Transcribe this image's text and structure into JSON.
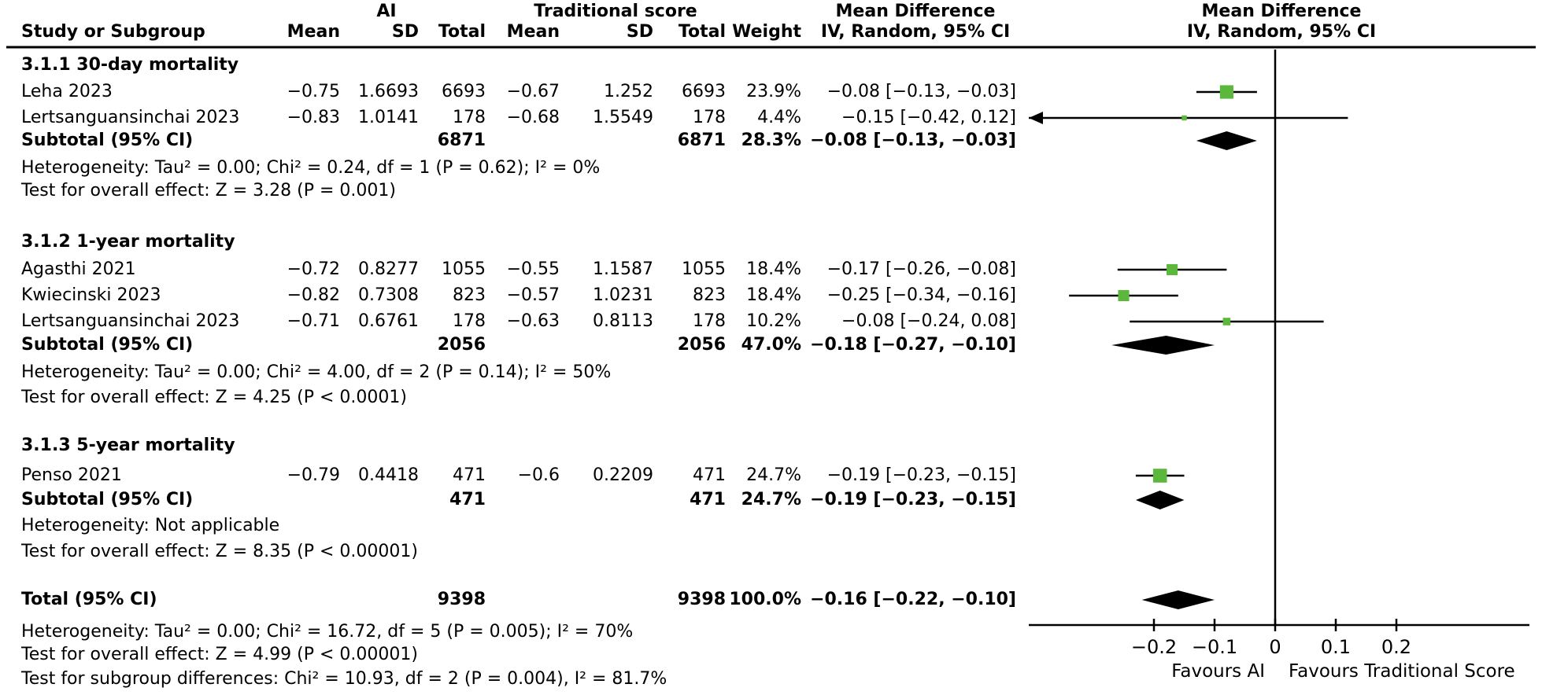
{
  "figure_header": {
    "study_col": "Study or Subgroup",
    "ai_group": "AI",
    "traditional_group": "Traditional score",
    "mean": "Mean",
    "sd": "SD",
    "total": "Total",
    "weight": "Weight",
    "md_title": "Mean Difference",
    "md_subtitle": "IV, Random, 95% CI"
  },
  "colors": {
    "marker_green": "#5cb83c",
    "ink": "#000000",
    "background": "#ffffff"
  },
  "chart_data": {
    "type": "forest",
    "effect_measure": "Mean Difference",
    "model": "IV, Random, 95% CI",
    "subtotal_label": "Subtotal (95% CI)",
    "axis": {
      "ticks": [
        -0.2,
        -0.1,
        0,
        0.1,
        0.2
      ],
      "clip_range": [
        -0.406,
        0.42
      ],
      "favours_left": "Favours AI",
      "favours_right": "Favours Traditional Score"
    },
    "subgroups": [
      {
        "name": "3.1.1 30-day mortality",
        "studies": [
          {
            "name": "Leha 2023",
            "ai_mean": -0.75,
            "ai_sd": 1.6693,
            "ai_total": 6693,
            "trad_mean": -0.67,
            "trad_sd": 1.252,
            "trad_total": 6693,
            "weight_pct": 23.9,
            "md": -0.08,
            "ci_low": -0.13,
            "ci_high": -0.03
          },
          {
            "name": "Lertsanguansinchai 2023",
            "ai_mean": -0.83,
            "ai_sd": 1.0141,
            "ai_total": 178,
            "trad_mean": -0.68,
            "trad_sd": 1.5549,
            "trad_total": 178,
            "weight_pct": 4.4,
            "md": -0.15,
            "ci_low": -0.42,
            "ci_high": 0.12
          }
        ],
        "subtotal": {
          "ai_total": 6871,
          "trad_total": 6871,
          "weight_pct": 28.3,
          "md": -0.08,
          "ci_low": -0.13,
          "ci_high": -0.03
        },
        "heterogeneity": "Heterogeneity: Tau² = 0.00; Chi² = 0.24, df = 1 (P = 0.62); I² = 0%",
        "overall_effect": "Test for overall effect: Z = 3.28 (P = 0.001)"
      },
      {
        "name": "3.1.2 1-year mortality",
        "studies": [
          {
            "name": "Agasthi 2021",
            "ai_mean": -0.72,
            "ai_sd": 0.8277,
            "ai_total": 1055,
            "trad_mean": -0.55,
            "trad_sd": 1.1587,
            "trad_total": 1055,
            "weight_pct": 18.4,
            "md": -0.17,
            "ci_low": -0.26,
            "ci_high": -0.08
          },
          {
            "name": "Kwiecinski 2023",
            "ai_mean": -0.82,
            "ai_sd": 0.7308,
            "ai_total": 823,
            "trad_mean": -0.57,
            "trad_sd": 1.0231,
            "trad_total": 823,
            "weight_pct": 18.4,
            "md": -0.25,
            "ci_low": -0.34,
            "ci_high": -0.16
          },
          {
            "name": "Lertsanguansinchai 2023",
            "ai_mean": -0.71,
            "ai_sd": 0.6761,
            "ai_total": 178,
            "trad_mean": -0.63,
            "trad_sd": 0.8113,
            "trad_total": 178,
            "weight_pct": 10.2,
            "md": -0.08,
            "ci_low": -0.24,
            "ci_high": 0.08
          }
        ],
        "subtotal": {
          "ai_total": 2056,
          "trad_total": 2056,
          "weight_pct": 47.0,
          "md": -0.18,
          "ci_low": -0.27,
          "ci_high": -0.1
        },
        "heterogeneity": "Heterogeneity: Tau² = 0.00; Chi² = 4.00, df = 2 (P = 0.14); I² = 50%",
        "overall_effect": "Test for overall effect: Z = 4.25 (P < 0.0001)"
      },
      {
        "name": "3.1.3 5-year mortality",
        "studies": [
          {
            "name": "Penso 2021",
            "ai_mean": -0.79,
            "ai_sd": 0.4418,
            "ai_total": 471,
            "trad_mean": -0.6,
            "trad_sd": 0.2209,
            "trad_total": 471,
            "weight_pct": 24.7,
            "md": -0.19,
            "ci_low": -0.23,
            "ci_high": -0.15
          }
        ],
        "subtotal": {
          "ai_total": 471,
          "trad_total": 471,
          "weight_pct": 24.7,
          "md": -0.19,
          "ci_low": -0.23,
          "ci_high": -0.15
        },
        "heterogeneity": "Heterogeneity: Not applicable",
        "overall_effect": "Test for overall effect: Z = 8.35 (P < 0.00001)"
      }
    ],
    "total": {
      "label": "Total (95% CI)",
      "ai_total": 9398,
      "trad_total": 9398,
      "weight_pct": 100.0,
      "md": -0.16,
      "ci_low": -0.22,
      "ci_high": -0.1,
      "heterogeneity": "Heterogeneity: Tau² = 0.00; Chi² = 16.72, df = 5 (P = 0.005); I² = 70%",
      "overall_effect": "Test for overall effect: Z = 4.99 (P < 0.00001)",
      "subgroup_differences": "Test for subgroup differences: Chi² = 10.93, df = 2 (P = 0.004), I² = 81.7%"
    }
  }
}
